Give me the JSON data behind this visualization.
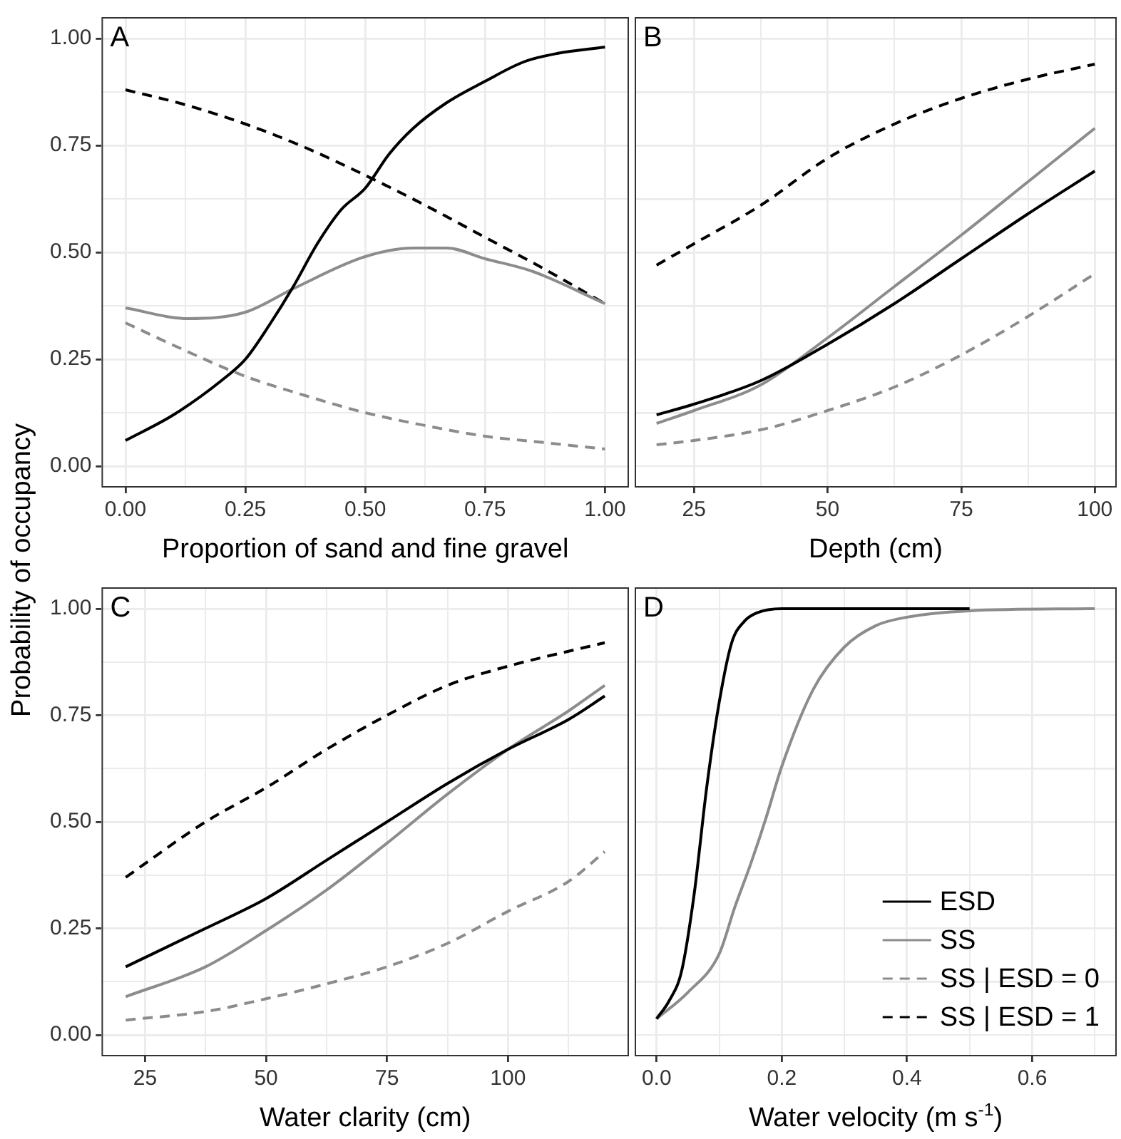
{
  "chart_data": [
    {
      "type": "line",
      "ylabel": "Probability of occupancy",
      "xlabel": "Proportion of sand and fine gravel",
      "annotations": [
        "A"
      ],
      "grid": true,
      "xlim": [
        -0.05,
        1.05
      ],
      "ylim": [
        -0.05,
        1.05
      ],
      "xticks": [
        {
          "value": 0,
          "label": "0.00"
        },
        {
          "value": 0.125,
          "label": null
        },
        {
          "value": 0.25,
          "label": "0.25"
        },
        {
          "value": 0.375,
          "label": null
        },
        {
          "value": 0.5,
          "label": "0.50"
        },
        {
          "value": 0.625,
          "label": null
        },
        {
          "value": 0.75,
          "label": "0.75"
        },
        {
          "value": 0.875,
          "label": null
        },
        {
          "value": 1,
          "label": "1.00"
        }
      ],
      "yticks": [
        {
          "value": 0,
          "label": "0.00"
        },
        {
          "value": 0.125,
          "label": null
        },
        {
          "value": 0.25,
          "label": "0.25"
        },
        {
          "value": 0.375,
          "label": null
        },
        {
          "value": 0.5,
          "label": "0.50"
        },
        {
          "value": 0.625,
          "label": null
        },
        {
          "value": 0.75,
          "label": "0.75"
        },
        {
          "value": 0.875,
          "label": null
        },
        {
          "value": 1,
          "label": "1.00"
        }
      ],
      "series": [
        {
          "color": "#000000",
          "line_style": "solid",
          "x": [
            0,
            0.1,
            0.2,
            0.25,
            0.3,
            0.35,
            0.4,
            0.45,
            0.5,
            0.55,
            0.6,
            0.67,
            0.75,
            0.83,
            0.9,
            1
          ],
          "values": [
            0.06,
            0.12,
            0.2,
            0.25,
            0.33,
            0.42,
            0.52,
            0.6,
            0.65,
            0.73,
            0.79,
            0.85,
            0.9,
            0.945,
            0.965,
            0.98
          ]
        },
        {
          "color": "#8c8c8c",
          "line_style": "solid",
          "x": [
            0,
            0.13,
            0.25,
            0.35,
            0.5,
            0.6,
            0.67,
            0.75,
            0.85,
            1
          ],
          "values": [
            0.37,
            0.345,
            0.36,
            0.415,
            0.49,
            0.51,
            0.51,
            0.485,
            0.455,
            0.38
          ]
        },
        {
          "color": "#8c8c8c",
          "line_style": "dashed",
          "x": [
            0,
            0.125,
            0.25,
            0.375,
            0.5,
            0.625,
            0.75,
            0.875,
            1
          ],
          "values": [
            0.335,
            0.27,
            0.21,
            0.165,
            0.125,
            0.095,
            0.07,
            0.055,
            0.04
          ]
        },
        {
          "color": "#000000",
          "line_style": "dashed",
          "x": [
            0,
            0.125,
            0.25,
            0.375,
            0.5,
            0.625,
            0.75,
            0.875,
            1
          ],
          "values": [
            0.88,
            0.845,
            0.8,
            0.745,
            0.68,
            0.61,
            0.535,
            0.46,
            0.38
          ]
        }
      ]
    },
    {
      "type": "line",
      "xlabel": "Depth (cm)",
      "annotations": [
        "B"
      ],
      "grid": true,
      "tick_labels": "x",
      "xlim": [
        13.9,
        104.1
      ],
      "ylim": [
        -0.05,
        1.05
      ],
      "xticks": [
        25,
        {
          "value": 37.5,
          "label": null
        },
        50,
        {
          "value": 62.5,
          "label": null
        },
        75,
        {
          "value": 87.5,
          "label": null
        },
        100
      ],
      "yticks": [
        0,
        0.125,
        0.25,
        0.375,
        0.5,
        0.625,
        0.75,
        0.875,
        1
      ],
      "series": [
        {
          "color": "#000000",
          "line_style": "solid",
          "x": [
            18,
            25,
            37.5,
            50,
            62.5,
            75,
            87.5,
            100
          ],
          "values": [
            0.12,
            0.145,
            0.2,
            0.285,
            0.38,
            0.485,
            0.59,
            0.69
          ]
        },
        {
          "color": "#8c8c8c",
          "line_style": "solid",
          "x": [
            18,
            25,
            37.5,
            50,
            62.5,
            75,
            87.5,
            100
          ],
          "values": [
            0.1,
            0.13,
            0.19,
            0.3,
            0.42,
            0.54,
            0.665,
            0.79
          ]
        },
        {
          "color": "#8c8c8c",
          "line_style": "dashed",
          "x": [
            18,
            25,
            37.5,
            50,
            62.5,
            75,
            87.5,
            100
          ],
          "values": [
            0.05,
            0.06,
            0.085,
            0.13,
            0.185,
            0.26,
            0.35,
            0.45
          ]
        },
        {
          "color": "#000000",
          "line_style": "dashed",
          "x": [
            18,
            25,
            37.5,
            50,
            62.5,
            75,
            87.5,
            100
          ],
          "values": [
            0.47,
            0.52,
            0.61,
            0.72,
            0.8,
            0.86,
            0.905,
            0.94
          ]
        }
      ]
    },
    {
      "type": "line",
      "xlabel": "Water clarity (cm)",
      "annotations": [
        "C"
      ],
      "grid": true,
      "xlim": [
        16,
        125
      ],
      "ylim": [
        -0.05,
        1.05
      ],
      "xticks": [
        25,
        {
          "value": 37.5,
          "label": null
        },
        50,
        {
          "value": 62.5,
          "label": null
        },
        75,
        {
          "value": 87.5,
          "label": null
        },
        100,
        {
          "value": 112.5,
          "label": null
        }
      ],
      "yticks": [
        {
          "value": 0,
          "label": "0.00"
        },
        {
          "value": 0.125,
          "label": null
        },
        {
          "value": 0.25,
          "label": "0.25"
        },
        {
          "value": 0.375,
          "label": null
        },
        {
          "value": 0.5,
          "label": "0.50"
        },
        {
          "value": 0.625,
          "label": null
        },
        {
          "value": 0.75,
          "label": "0.75"
        },
        {
          "value": 0.875,
          "label": null
        },
        {
          "value": 1,
          "label": "1.00"
        }
      ],
      "series": [
        {
          "color": "#000000",
          "line_style": "solid",
          "x": [
            21,
            37.5,
            50,
            62.5,
            75,
            87.5,
            100,
            112.5,
            120
          ],
          "values": [
            0.16,
            0.25,
            0.32,
            0.41,
            0.5,
            0.59,
            0.67,
            0.74,
            0.795
          ]
        },
        {
          "color": "#8c8c8c",
          "line_style": "solid",
          "x": [
            21,
            37.5,
            50,
            62.5,
            75,
            87.5,
            100,
            112.5,
            120
          ],
          "values": [
            0.09,
            0.16,
            0.245,
            0.34,
            0.45,
            0.565,
            0.67,
            0.76,
            0.82
          ]
        },
        {
          "color": "#8c8c8c",
          "line_style": "dashed",
          "x": [
            21,
            37.5,
            50,
            62.5,
            75,
            87.5,
            100,
            112.5,
            120
          ],
          "values": [
            0.035,
            0.055,
            0.085,
            0.12,
            0.16,
            0.215,
            0.29,
            0.36,
            0.43
          ]
        },
        {
          "color": "#000000",
          "line_style": "dashed",
          "x": [
            21,
            37.5,
            50,
            62.5,
            75,
            87.5,
            100,
            112.5,
            120
          ],
          "values": [
            0.37,
            0.5,
            0.58,
            0.67,
            0.75,
            0.82,
            0.865,
            0.9,
            0.92
          ]
        }
      ]
    },
    {
      "type": "line",
      "xlabel": "Water velocity (m s$^{-1}$)",
      "annotations": [
        "D"
      ],
      "grid": true,
      "tick_labels": "x",
      "legend": "bottom right",
      "xlim": [
        -0.035,
        0.735
      ],
      "ylim": [
        -0.05,
        1.05
      ],
      "xticks": [
        {
          "value": 0,
          "label": "0.0"
        },
        {
          "value": 0.1,
          "label": null
        },
        {
          "value": 0.2,
          "label": "0.2"
        },
        {
          "value": 0.3,
          "label": null
        },
        {
          "value": 0.4,
          "label": "0.4"
        },
        {
          "value": 0.5,
          "label": null
        },
        {
          "value": 0.6,
          "label": "0.6"
        },
        {
          "value": 0.7,
          "label": null
        }
      ],
      "yticks": [
        0,
        0.125,
        0.25,
        0.375,
        0.5,
        0.625,
        0.75,
        0.875,
        1
      ],
      "series": [
        {
          "name": "ESD",
          "color": "#000000",
          "line_style": "solid",
          "x": [
            0,
            0.02,
            0.04,
            0.06,
            0.08,
            0.1,
            0.12,
            0.14,
            0.16,
            0.2,
            0.3,
            0.5
          ],
          "values": [
            0.038,
            0.08,
            0.15,
            0.33,
            0.58,
            0.78,
            0.92,
            0.97,
            0.99,
            1,
            1,
            1
          ]
        },
        {
          "name": "SS",
          "color": "#8c8c8c",
          "line_style": "solid",
          "x": [
            0,
            0.05,
            0.1,
            0.125,
            0.15,
            0.175,
            0.2,
            0.25,
            0.3,
            0.35,
            0.4,
            0.5,
            0.7
          ],
          "values": [
            0.038,
            0.1,
            0.19,
            0.3,
            0.4,
            0.51,
            0.63,
            0.81,
            0.91,
            0.96,
            0.98,
            0.995,
            1
          ]
        },
        {
          "name": "SS | ESD = 0",
          "color": "#8c8c8c",
          "line_style": "dashed"
        },
        {
          "name": "SS | ESD = 1",
          "color": "#000000",
          "line_style": "dashed"
        }
      ]
    }
  ]
}
